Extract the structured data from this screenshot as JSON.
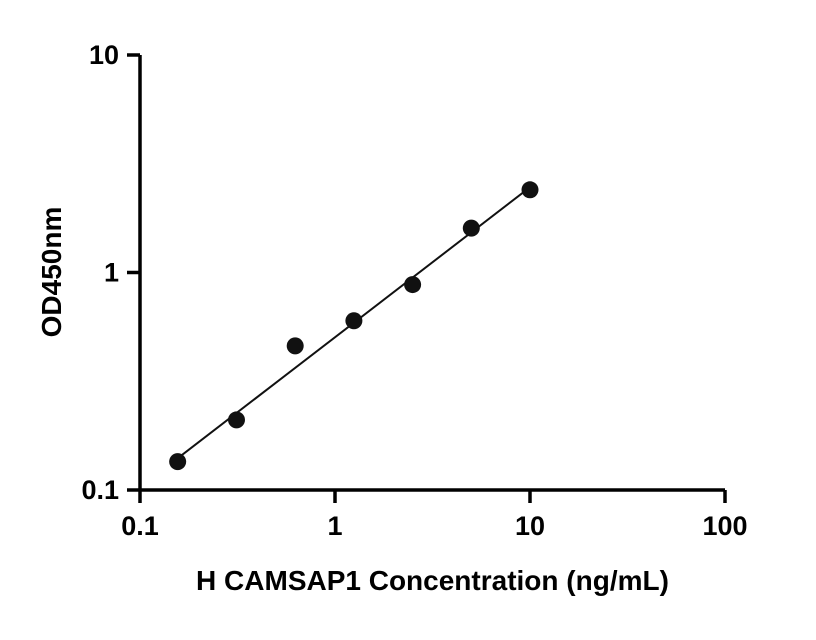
{
  "chart_data": {
    "type": "scatter",
    "title": "",
    "xlabel": "H CAMSAP1 Concentration (ng/mL)",
    "ylabel": "OD450nm",
    "xscale": "log",
    "yscale": "log",
    "xlim": [
      0.1,
      100
    ],
    "ylim": [
      0.1,
      10
    ],
    "x_ticks": [
      0.1,
      1,
      10,
      100
    ],
    "x_tick_labels": [
      "0.1",
      "1",
      "10",
      "100"
    ],
    "y_ticks": [
      0.1,
      1,
      10
    ],
    "y_tick_labels": [
      "0.1",
      "1",
      "10"
    ],
    "grid": false,
    "legend": null,
    "marker_color": "#111111",
    "line_color": "#111111",
    "axis_color": "#000000",
    "points": [
      {
        "x": 0.156,
        "y": 0.135
      },
      {
        "x": 0.3125,
        "y": 0.21
      },
      {
        "x": 0.625,
        "y": 0.46
      },
      {
        "x": 1.25,
        "y": 0.6
      },
      {
        "x": 2.5,
        "y": 0.88
      },
      {
        "x": 5,
        "y": 1.6
      },
      {
        "x": 10,
        "y": 2.4
      }
    ],
    "trendline": {
      "x1": 0.145,
      "y1": 0.133,
      "x2": 10.2,
      "y2": 2.5
    }
  }
}
